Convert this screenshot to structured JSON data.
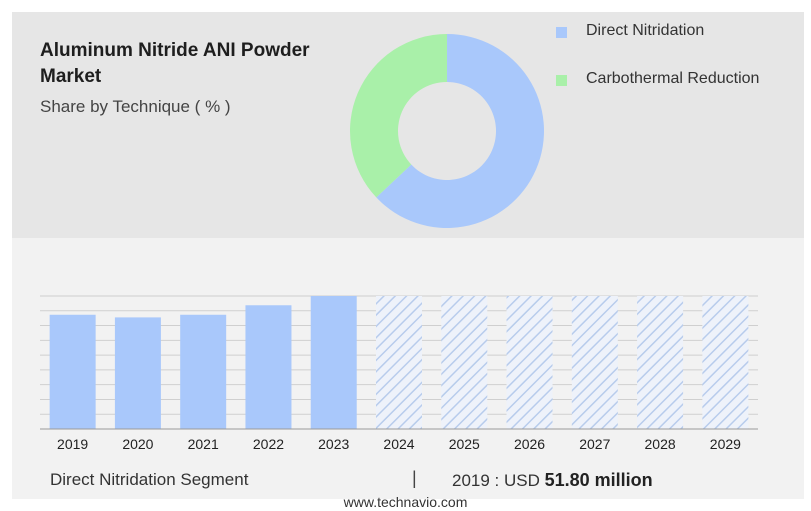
{
  "header": {
    "title": "Aluminum Nitride ANI Powder Market",
    "subtitle": "Share by Technique ( % )"
  },
  "legend": [
    {
      "label": "Direct Nitridation",
      "color": "#a9c8fb"
    },
    {
      "label": "Carbothermal Reduction",
      "color": "#a9f0a9"
    }
  ],
  "footer": {
    "segment_label": "Direct Nitridation Segment",
    "separator": "|",
    "year_prefix": "2019 : USD",
    "value": "51.80 million",
    "website": "www.technavio.com"
  },
  "chart_data": [
    {
      "type": "pie",
      "style": "donut",
      "labels": [
        "Direct Nitridation",
        "Carbothermal Reduction"
      ],
      "values": [
        63,
        37
      ],
      "colors": [
        "#a9c8fb",
        "#a9f0a9"
      ]
    },
    {
      "type": "bar",
      "categories": [
        "2019",
        "2020",
        "2021",
        "2022",
        "2023",
        "2024",
        "2025",
        "2026",
        "2027",
        "2028",
        "2029"
      ],
      "values": [
        51.8,
        50.6,
        51.8,
        56.1,
        60.3,
        null,
        null,
        null,
        null,
        null,
        null
      ],
      "forecast_categories": [
        "2024",
        "2025",
        "2026",
        "2027",
        "2028",
        "2029"
      ],
      "forecast_pattern": "hatched",
      "ylim": [
        0,
        60.3
      ],
      "grid": true,
      "colors": {
        "bar": "#a9c8fb",
        "hatch": "#b8ccec",
        "grid": "#cfcfcf"
      }
    }
  ]
}
